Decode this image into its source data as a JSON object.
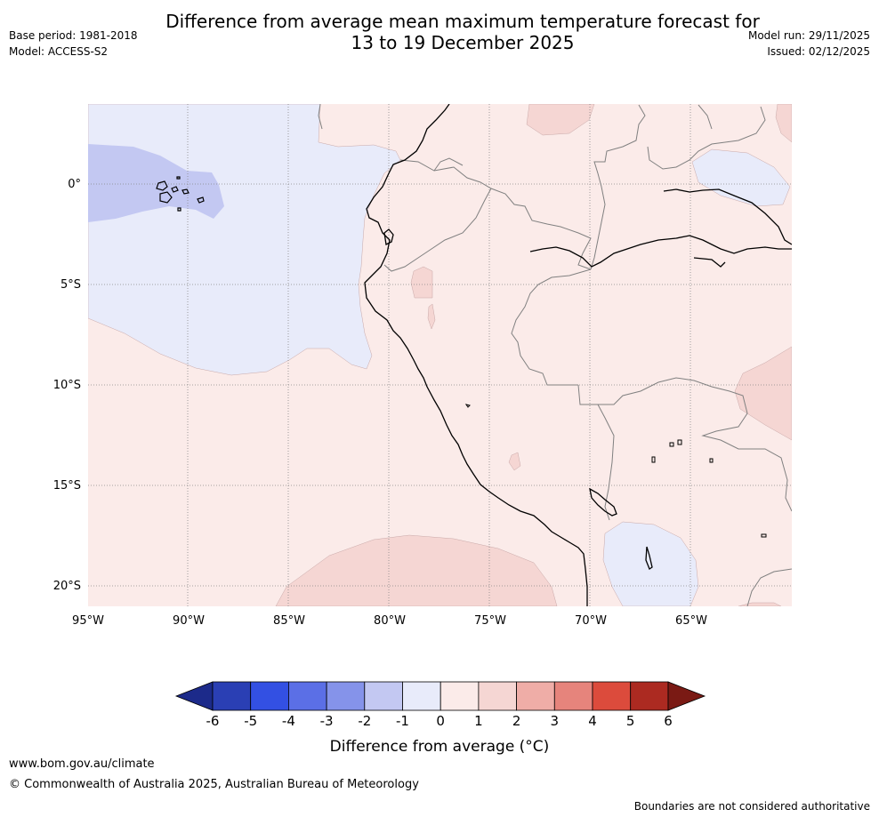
{
  "header": {
    "title_line1": "Difference from average mean maximum temperature forecast for",
    "title_line2": "13 to 19 December 2025",
    "base_period": "Base period: 1981-2018",
    "model": "Model: ACCESS-S2",
    "model_run": "Model run: 29/11/2025",
    "issued": "Issued: 02/12/2025"
  },
  "map": {
    "lon_ticks": [
      "95°W",
      "90°W",
      "85°W",
      "80°W",
      "75°W",
      "70°W",
      "65°W"
    ],
    "lat_ticks": [
      "0°",
      "5°S",
      "10°S",
      "15°S",
      "20°S"
    ],
    "colors": {
      "neg2_1": "#c3c8f2",
      "neg1_0": "#e8ebfa",
      "pos0_1": "#fbebe9",
      "pos1_2": "#f5d6d3",
      "border": "#808080",
      "coast": "#000000"
    }
  },
  "colorbar": {
    "label": "Difference from average (°C)",
    "ticks": [
      "-6",
      "-5",
      "-4",
      "-3",
      "-2",
      "-1",
      "0",
      "1",
      "2",
      "3",
      "4",
      "5",
      "6"
    ],
    "colors": [
      "#1c2a8a",
      "#2a3fb4",
      "#3350e3",
      "#5b6fe6",
      "#8593ea",
      "#c3c8f2",
      "#e8ebfa",
      "#fbebe9",
      "#f5d6d3",
      "#efada7",
      "#e6847c",
      "#dc4b3c",
      "#ac2a21",
      "#7a1a14"
    ]
  },
  "footer": {
    "url": "www.bom.gov.au/climate",
    "copyright": "© Commonwealth of Australia 2025, Australian Bureau of Meteorology",
    "disclaimer": "Boundaries are not considered authoritative"
  }
}
